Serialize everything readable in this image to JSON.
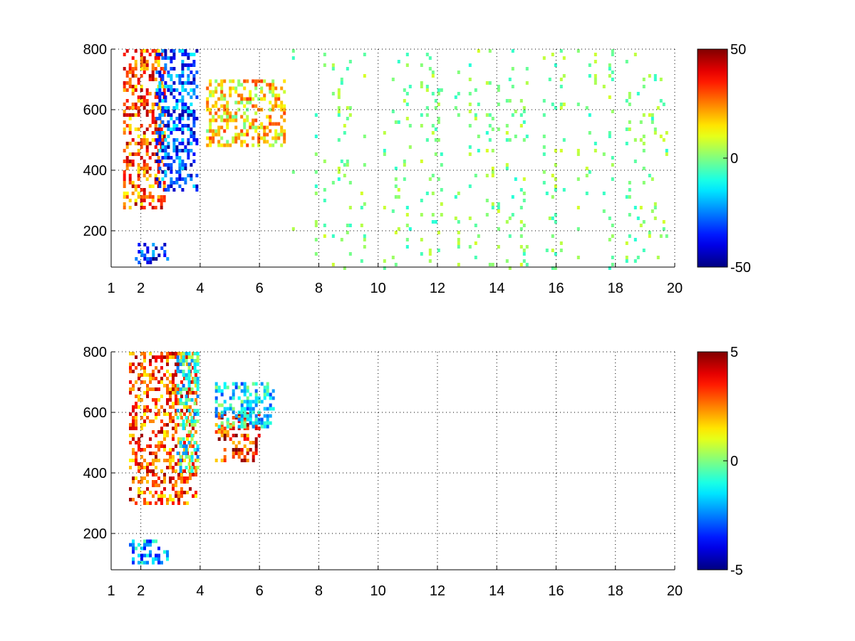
{
  "chart_data": [
    {
      "type": "heatmap",
      "title": "",
      "xlabel": "",
      "ylabel": "",
      "xlim": [
        1,
        20
      ],
      "ylim": [
        80,
        800
      ],
      "xticks": [
        1,
        2,
        4,
        6,
        8,
        10,
        12,
        14,
        16,
        18,
        20
      ],
      "yticks": [
        200,
        400,
        600,
        800
      ],
      "grid": true,
      "colormap": "jet",
      "clim": [
        -50,
        50
      ],
      "colorbar_ticks": [
        50,
        0,
        -50
      ],
      "features": [
        {
          "description_free": true,
          "x": [
            1.4,
            2.8
          ],
          "y": [
            280,
            800
          ],
          "value": 30
        },
        {
          "x": [
            2.5,
            3.9
          ],
          "y": [
            330,
            800
          ],
          "value": -30
        },
        {
          "x": [
            4.2,
            6.8
          ],
          "y": [
            480,
            700
          ],
          "value": 15
        },
        {
          "x": [
            1.8,
            2.9
          ],
          "y": [
            100,
            160
          ],
          "value": -35
        },
        {
          "x": [
            7.0,
            20.0
          ],
          "y": [
            80,
            800
          ],
          "value": 0,
          "sparse": true
        }
      ]
    },
    {
      "type": "heatmap",
      "title": "",
      "xlabel": "",
      "ylabel": "",
      "xlim": [
        1,
        20
      ],
      "ylim": [
        80,
        800
      ],
      "xticks": [
        1,
        2,
        4,
        6,
        8,
        10,
        12,
        14,
        16,
        18,
        20
      ],
      "yticks": [
        200,
        400,
        600,
        800
      ],
      "grid": true,
      "colormap": "jet",
      "clim": [
        -5,
        5
      ],
      "colorbar_ticks": [
        5,
        0,
        -5
      ],
      "features": [
        {
          "x": [
            1.6,
            3.9
          ],
          "y": [
            300,
            800
          ],
          "value": 3
        },
        {
          "x": [
            3.2,
            3.9
          ],
          "y": [
            400,
            800
          ],
          "value": -1
        },
        {
          "x": [
            4.5,
            6.0
          ],
          "y": [
            440,
            600
          ],
          "value": 3.5
        },
        {
          "x": [
            4.5,
            6.5
          ],
          "y": [
            550,
            700
          ],
          "value": -1.5
        },
        {
          "x": [
            1.6,
            2.9
          ],
          "y": [
            100,
            180
          ],
          "value": -2
        }
      ]
    }
  ]
}
